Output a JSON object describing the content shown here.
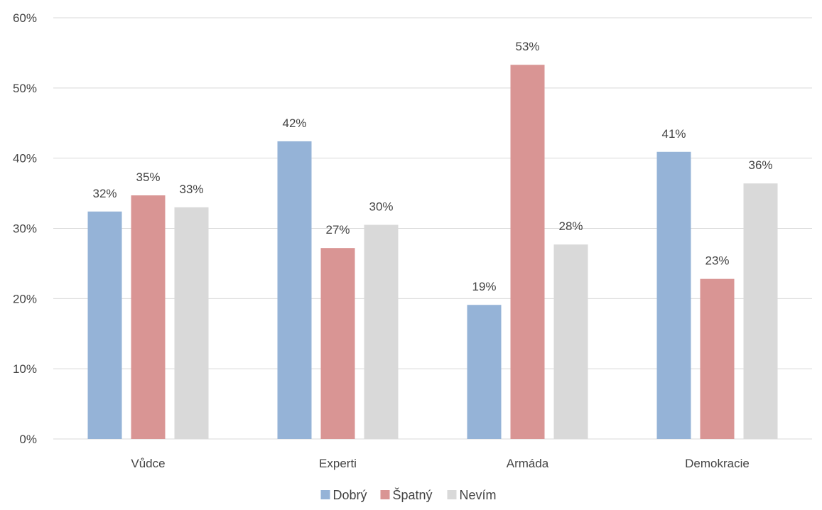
{
  "chart_data": {
    "type": "bar",
    "title": "",
    "xlabel": "",
    "ylabel": "",
    "categories": [
      "Vůdce",
      "Experti",
      "Armáda",
      "Demokracie"
    ],
    "series": [
      {
        "name": "Dobrý",
        "color": "#95b3d7",
        "values": [
          32.4,
          42.4,
          19.1,
          40.9
        ]
      },
      {
        "name": "Špatný",
        "color": "#d99594",
        "values": [
          34.7,
          27.2,
          53.3,
          22.8
        ]
      },
      {
        "name": "Nevím",
        "color": "#d9d9d9",
        "values": [
          33.0,
          30.5,
          27.7,
          36.4
        ]
      }
    ],
    "data_labels": [
      [
        "32%",
        "42%",
        "19%",
        "41%"
      ],
      [
        "35%",
        "27%",
        "53%",
        "23%"
      ],
      [
        "33%",
        "30%",
        "28%",
        "36%"
      ]
    ],
    "yticks": [
      "0%",
      "10%",
      "20%",
      "30%",
      "40%",
      "50%",
      "60%"
    ],
    "ylim": [
      0,
      60
    ],
    "grid": true,
    "legend_position": "bottom"
  }
}
